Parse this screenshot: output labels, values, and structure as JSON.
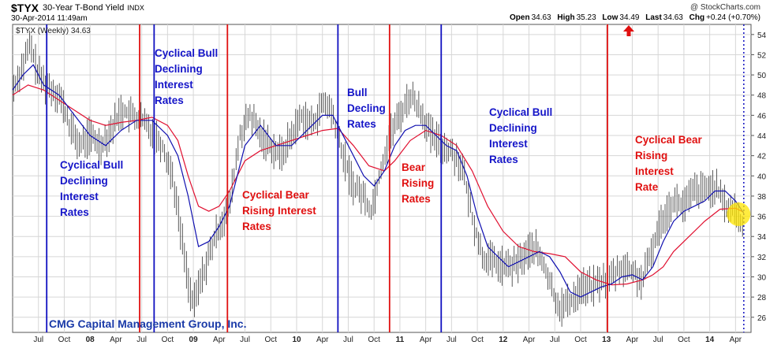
{
  "header": {
    "symbol": "$TYX",
    "description": "30-Year T-Bond Yield",
    "exchange": "INDX",
    "date": "30-Apr-2014 11:49am",
    "credit": "@ StockCharts.com",
    "open_label": "Open",
    "open": "34.63",
    "high_label": "High",
    "high": "35.23",
    "low_label": "Low",
    "low": "34.49",
    "last_label": "Last",
    "last": "34.63",
    "chg_label": "Chg",
    "chg": "+0.24 (+0.70%)",
    "legend": "$TYX (Weekly) 34.63"
  },
  "footer": {
    "company": "CMG Capital Management Group, Inc."
  },
  "colors": {
    "price": "#333333",
    "ma_fast": "#1010b0",
    "ma_slow": "#e01030",
    "blue_line": "#1010c0",
    "red_line": "#e01010",
    "highlight": "#ffe600"
  },
  "annotations": [
    {
      "text": "Cyclical Bull\nDeclining\nInterest\nRates",
      "color": "blue"
    },
    {
      "text": "Cyclical Bull\nDeclining\nInterest\nRates",
      "color": "blue"
    },
    {
      "text": "Cyclical Bear\nRising Interest\nRates",
      "color": "red"
    },
    {
      "text": "Bull\nDecling\nRates",
      "color": "blue"
    },
    {
      "text": "Bear\nRising\nRates",
      "color": "red"
    },
    {
      "text": "Cyclical Bull\nDeclining\nInterest\nRates",
      "color": "blue"
    },
    {
      "text": "Cyclical Bear\nRising\nInterest\nRate",
      "color": "red"
    }
  ],
  "chart_data": {
    "type": "line",
    "ylim": [
      24.5,
      55
    ],
    "y_ticks": [
      26,
      28,
      30,
      32,
      34,
      36,
      38,
      40,
      42,
      44,
      46,
      48,
      50,
      52,
      54
    ],
    "x_ticks": [
      "Jul",
      "Oct",
      "08",
      "Apr",
      "Jul",
      "Oct",
      "09",
      "Apr",
      "Jul",
      "Oct",
      "10",
      "Apr",
      "Jul",
      "Oct",
      "11",
      "Apr",
      "Jul",
      "Oct",
      "12",
      "Apr",
      "Jul",
      "Oct",
      "13",
      "Apr",
      "Jul",
      "Oct",
      "14",
      "Apr"
    ],
    "x_tick_dates": [
      2007.5,
      2007.75,
      2008.0,
      2008.25,
      2008.5,
      2008.75,
      2009.0,
      2009.25,
      2009.5,
      2009.75,
      2010.0,
      2010.25,
      2010.5,
      2010.75,
      2011.0,
      2011.25,
      2011.5,
      2011.75,
      2012.0,
      2012.25,
      2012.5,
      2012.75,
      2013.0,
      2013.25,
      2013.5,
      2013.75,
      2014.0,
      2014.25
    ],
    "xlim": [
      2007.25,
      2014.4
    ],
    "regime_lines": [
      {
        "date": 2007.58,
        "color": "blue"
      },
      {
        "date": 2008.48,
        "color": "red"
      },
      {
        "date": 2008.62,
        "color": "blue"
      },
      {
        "date": 2009.33,
        "color": "red"
      },
      {
        "date": 2010.4,
        "color": "blue"
      },
      {
        "date": 2010.9,
        "color": "red"
      },
      {
        "date": 2011.4,
        "color": "blue"
      },
      {
        "date": 2013.01,
        "color": "red"
      }
    ],
    "price": {
      "x": [
        2007.25,
        2007.35,
        2007.42,
        2007.5,
        2007.58,
        2007.7,
        2007.8,
        2007.9,
        2008.0,
        2008.1,
        2008.2,
        2008.3,
        2008.4,
        2008.5,
        2008.6,
        2008.7,
        2008.8,
        2008.9,
        2008.96,
        2009.0,
        2009.05,
        2009.15,
        2009.25,
        2009.35,
        2009.45,
        2009.55,
        2009.65,
        2009.75,
        2009.85,
        2009.95,
        2010.05,
        2010.15,
        2010.25,
        2010.3,
        2010.35,
        2010.45,
        2010.55,
        2010.65,
        2010.72,
        2010.8,
        2010.9,
        2011.0,
        2011.1,
        2011.2,
        2011.3,
        2011.4,
        2011.5,
        2011.6,
        2011.7,
        2011.8,
        2011.9,
        2012.0,
        2012.1,
        2012.2,
        2012.3,
        2012.4,
        2012.5,
        2012.55,
        2012.65,
        2012.75,
        2012.85,
        2012.95,
        2013.05,
        2013.15,
        2013.25,
        2013.35,
        2013.45,
        2013.55,
        2013.65,
        2013.75,
        2013.85,
        2013.95,
        2014.05,
        2014.15,
        2014.25,
        2014.33
      ],
      "y": [
        48.5,
        51,
        53,
        50,
        49,
        48,
        45,
        43,
        44,
        43,
        44.5,
        46.5,
        46,
        45.5,
        44.5,
        43,
        40,
        33,
        29,
        27,
        29,
        32,
        35,
        37,
        44,
        46,
        44,
        43,
        42,
        44,
        46,
        45,
        47,
        47,
        46,
        42,
        39,
        38,
        36.5,
        40,
        44,
        46,
        48,
        46.5,
        44,
        43,
        42.5,
        41,
        36,
        32,
        31.5,
        31,
        31,
        32,
        33,
        31,
        28,
        27,
        27.5,
        29,
        29,
        29.5,
        30,
        31,
        30.5,
        29.5,
        33,
        36,
        37.5,
        37,
        38.5,
        38.5,
        39,
        37,
        36.5,
        34.6
      ]
    },
    "ma_fast": {
      "x": [
        2007.25,
        2007.35,
        2007.45,
        2007.55,
        2007.7,
        2007.85,
        2008.0,
        2008.15,
        2008.3,
        2008.45,
        2008.6,
        2008.75,
        2008.85,
        2008.95,
        2009.05,
        2009.15,
        2009.25,
        2009.35,
        2009.5,
        2009.65,
        2009.8,
        2009.95,
        2010.1,
        2010.25,
        2010.35,
        2010.5,
        2010.65,
        2010.75,
        2010.85,
        2010.95,
        2011.05,
        2011.15,
        2011.25,
        2011.35,
        2011.45,
        2011.55,
        2011.65,
        2011.75,
        2011.85,
        2011.95,
        2012.05,
        2012.15,
        2012.25,
        2012.35,
        2012.45,
        2012.55,
        2012.65,
        2012.75,
        2012.85,
        2012.95,
        2013.05,
        2013.15,
        2013.25,
        2013.35,
        2013.45,
        2013.55,
        2013.65,
        2013.75,
        2013.85,
        2013.95,
        2014.05,
        2014.15,
        2014.25,
        2014.33
      ],
      "y": [
        48.5,
        50,
        51,
        49,
        48,
        46,
        44,
        43,
        44.5,
        45.5,
        45.5,
        44,
        42,
        38,
        33,
        33.5,
        35,
        37,
        43,
        45,
        43,
        43,
        44.5,
        46,
        46,
        43,
        40,
        39,
        40.5,
        43,
        44.5,
        45,
        45,
        44,
        43,
        42.5,
        40,
        36,
        33,
        32,
        31,
        31.5,
        32,
        32.5,
        32,
        30.5,
        28.5,
        28,
        28.5,
        29,
        29.3,
        30,
        30.2,
        29.7,
        31,
        33.5,
        35.5,
        36.5,
        37,
        37.5,
        38.5,
        38.5,
        37.5,
        36.3
      ]
    },
    "ma_slow": {
      "x": [
        2007.25,
        2007.4,
        2007.55,
        2007.7,
        2007.85,
        2008.0,
        2008.15,
        2008.3,
        2008.45,
        2008.6,
        2008.75,
        2008.85,
        2008.95,
        2009.05,
        2009.15,
        2009.25,
        2009.35,
        2009.5,
        2009.65,
        2009.8,
        2009.95,
        2010.1,
        2010.25,
        2010.4,
        2010.55,
        2010.7,
        2010.85,
        2010.95,
        2011.1,
        2011.25,
        2011.4,
        2011.55,
        2011.7,
        2011.85,
        2012.0,
        2012.15,
        2012.3,
        2012.45,
        2012.6,
        2012.75,
        2012.9,
        2013.05,
        2013.2,
        2013.35,
        2013.45,
        2013.55,
        2013.65,
        2013.8,
        2013.95,
        2014.1,
        2014.25,
        2014.33
      ],
      "y": [
        48,
        49,
        48.5,
        47.5,
        46.5,
        45.5,
        45,
        45.3,
        45.5,
        45.8,
        45,
        43.5,
        40,
        37,
        36.5,
        37,
        38.5,
        41.5,
        42.5,
        43,
        43.5,
        44,
        44.5,
        44.7,
        43,
        41,
        40.5,
        41.5,
        43.5,
        44.5,
        44,
        43,
        40.5,
        37,
        34.5,
        33,
        32.5,
        32.3,
        32,
        30.5,
        29.7,
        29.2,
        29.3,
        29.7,
        30.2,
        31,
        32.5,
        34,
        35.5,
        36.7,
        36.8,
        36.4
      ]
    }
  }
}
